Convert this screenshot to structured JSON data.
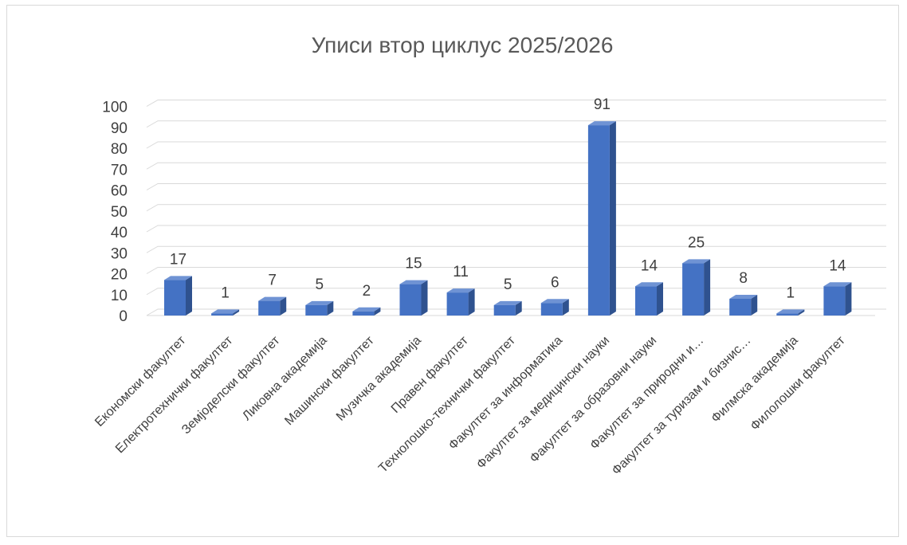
{
  "chart_data": {
    "type": "bar",
    "title": "Уписи втор циклус 2025/2026",
    "xlabel": "",
    "ylabel": "",
    "ylim": [
      0,
      100
    ],
    "yticks": [
      0,
      10,
      20,
      30,
      40,
      50,
      60,
      70,
      80,
      90,
      100
    ],
    "yticks_text": [
      "0",
      "10",
      "20",
      "30",
      "40",
      "50",
      "60",
      "70",
      "80",
      "90",
      "100"
    ],
    "grid": true,
    "legend": "none",
    "bar_style": "3d-clustered-column",
    "colors": {
      "bar_front": "#4472c4",
      "bar_side": "#2f528f",
      "bar_top": "#6f93d4",
      "grid": "#d9d9d9",
      "text": "#404040",
      "title": "#595959"
    },
    "categories": [
      "Економски факултет",
      "Електротехнички факултет",
      "Земјоделски факултет",
      "Ликовна академија",
      "Машински факултет",
      "Музичка академија",
      "Правен факултет",
      "Технолошко-технички факултет",
      "Факултет за информатика",
      "Факултет за медицински науки",
      "Факултет за образовни науки",
      "Факултет за природни и…",
      "Факултет за туризам и бизнис…",
      "Филмска академија",
      "Филолошки факултет"
    ],
    "values": [
      17,
      1,
      7,
      5,
      2,
      15,
      11,
      5,
      6,
      91,
      14,
      25,
      8,
      1,
      14
    ],
    "values_text": [
      "17",
      "1",
      "7",
      "5",
      "2",
      "15",
      "11",
      "5",
      "6",
      "91",
      "14",
      "25",
      "8",
      "1",
      "14"
    ]
  }
}
